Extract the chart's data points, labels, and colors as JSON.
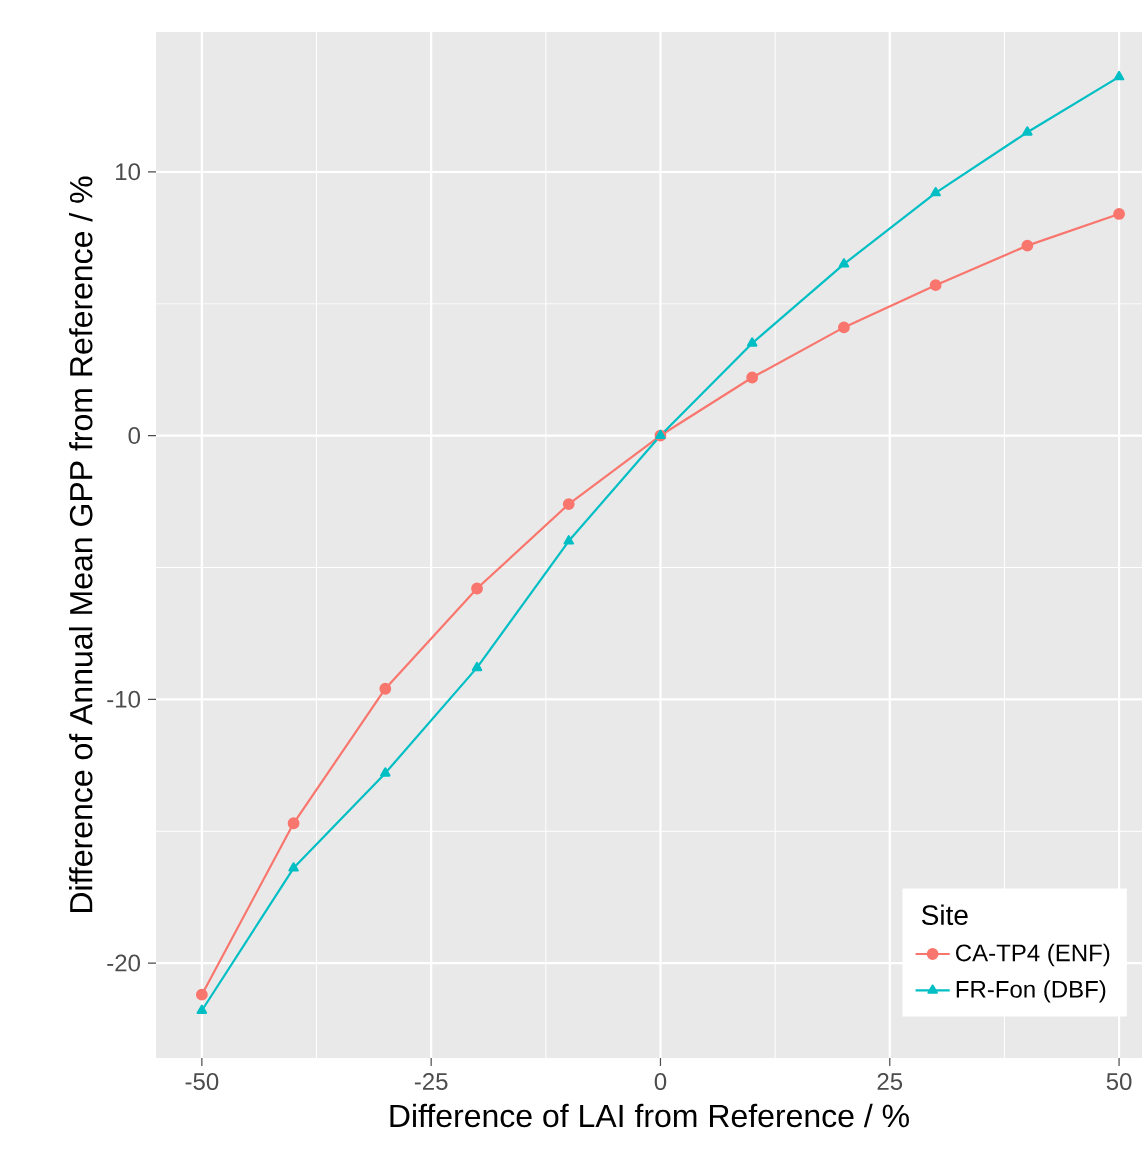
{
  "chart_data": {
    "type": "line",
    "xlabel": "Difference of LAI from Reference / %",
    "ylabel": "Difference of Annual Mean GPP from Reference / %",
    "legend_title": "Site",
    "x": [
      -50,
      -40,
      -30,
      -20,
      -10,
      0,
      10,
      20,
      30,
      40,
      50
    ],
    "series": [
      {
        "name": "CA-TP4 (ENF)",
        "color": "#f8766d",
        "marker": "circle",
        "values": [
          -21.2,
          -14.7,
          -9.6,
          -5.8,
          -2.6,
          0,
          2.2,
          4.1,
          5.7,
          7.2,
          8.4
        ]
      },
      {
        "name": "FR-Fon (DBF)",
        "color": "#00bfc4",
        "marker": "triangle",
        "values": [
          -21.8,
          -16.4,
          -12.8,
          -8.8,
          -4.0,
          0,
          3.5,
          6.5,
          9.2,
          11.5,
          13.6
        ]
      }
    ],
    "xlim": [
      -55,
      52.5
    ],
    "ylim": [
      -23.6,
      15.3
    ],
    "xticks": [
      -50,
      -25,
      0,
      25,
      50
    ],
    "yticks": [
      -20,
      -10,
      0,
      10
    ],
    "grid": true,
    "legend": "bottom right",
    "line_style": "solid"
  }
}
